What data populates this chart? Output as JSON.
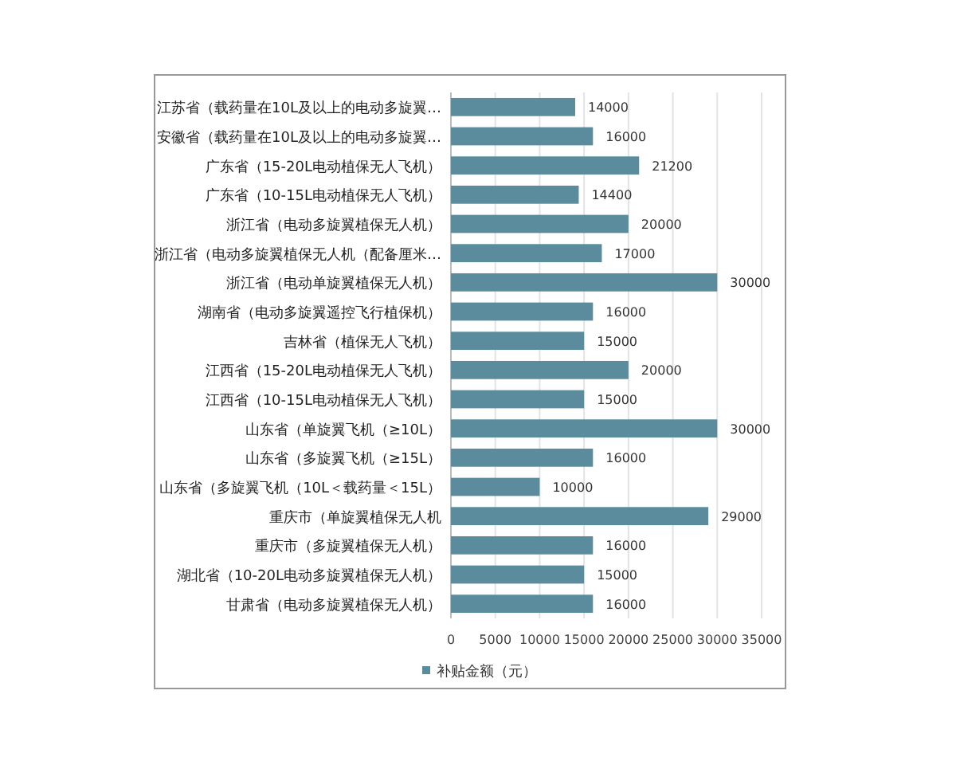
{
  "chart_data": {
    "type": "bar",
    "orientation": "horizontal",
    "categories": [
      "江苏省（载药量在10L及以上的电动多旋翼…",
      "安徽省（载药量在10L及以上的电动多旋翼…",
      "广东省（15-20L电动植保无人飞机）",
      "广东省（10-15L电动植保无人飞机）",
      "浙江省（电动多旋翼植保无人机）",
      "浙江省（电动多旋翼植保无人机（配备厘米…",
      "浙江省（电动单旋翼植保无人机）",
      "湖南省（电动多旋翼遥控飞行植保机）",
      "吉林省（植保无人飞机）",
      "江西省（15-20L电动植保无人飞机）",
      "江西省（10-15L电动植保无人飞机）",
      "山东省（单旋翼飞机（≥10L）",
      "山东省（多旋翼飞机（≥15L）",
      "山东省（多旋翼飞机（10L＜载药量＜15L）",
      "重庆市（单旋翼植保无人机",
      "重庆市（多旋翼植保无人机）",
      "湖北省（10-20L电动多旋翼植保无人机）",
      "甘肃省（电动多旋翼植保无人机）"
    ],
    "series": [
      {
        "name": "补贴金额（元）",
        "color": "#5b8c9e",
        "values": [
          14000,
          16000,
          21200,
          14400,
          20000,
          17000,
          30000,
          16000,
          15000,
          20000,
          15000,
          30000,
          16000,
          10000,
          29000,
          16000,
          15000,
          16000
        ]
      }
    ],
    "xlim": [
      0,
      35000
    ],
    "xticks": [
      0,
      5000,
      10000,
      15000,
      20000,
      25000,
      30000,
      35000
    ],
    "grid": "x",
    "legend": "bottom",
    "data_labels": true
  }
}
